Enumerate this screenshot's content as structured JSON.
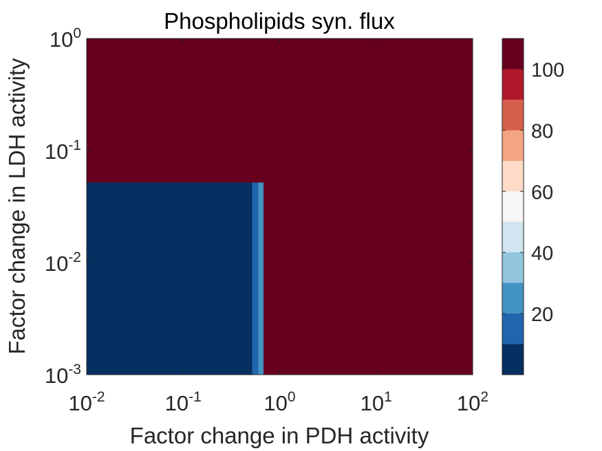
{
  "chart_data": {
    "type": "heatmap",
    "title": "Phospholipids syn. flux",
    "xlabel": "Factor change in PDH activity",
    "ylabel": "Factor change in LDH activity",
    "x_scale": "log",
    "y_scale": "log",
    "xlim": [
      0.01,
      100
    ],
    "ylim": [
      0.001,
      1
    ],
    "x_ticks": [
      {
        "base": "10",
        "exp": "-2",
        "value": 0.01
      },
      {
        "base": "10",
        "exp": "-1",
        "value": 0.1
      },
      {
        "base": "10",
        "exp": "0",
        "value": 1
      },
      {
        "base": "10",
        "exp": "1",
        "value": 10
      },
      {
        "base": "10",
        "exp": "2",
        "value": 100
      }
    ],
    "y_ticks": [
      {
        "base": "10",
        "exp": "-3",
        "value": 0.001
      },
      {
        "base": "10",
        "exp": "-2",
        "value": 0.01
      },
      {
        "base": "10",
        "exp": "-1",
        "value": 0.1
      },
      {
        "base": "10",
        "exp": "0",
        "value": 1
      }
    ],
    "regions": [
      {
        "x": [
          0.01,
          100
        ],
        "y": [
          0.001,
          1
        ],
        "value": 105
      },
      {
        "x": [
          0.01,
          0.52
        ],
        "y": [
          0.001,
          0.052
        ],
        "value": 3
      },
      {
        "x": [
          0.52,
          0.6
        ],
        "y": [
          0.001,
          0.052
        ],
        "value": 15
      },
      {
        "x": [
          0.6,
          0.68
        ],
        "y": [
          0.001,
          0.052
        ],
        "value": 25
      }
    ],
    "grid": false,
    "colorbar": {
      "min": 0,
      "max": 110,
      "ticks": [
        {
          "label": "20",
          "value": 20
        },
        {
          "label": "40",
          "value": 40
        },
        {
          "label": "60",
          "value": 60
        },
        {
          "label": "80",
          "value": 80
        },
        {
          "label": "100",
          "value": 100
        }
      ],
      "bands": [
        {
          "from": 0,
          "to": 10,
          "color": "#053061"
        },
        {
          "from": 10,
          "to": 20,
          "color": "#2166ac"
        },
        {
          "from": 20,
          "to": 30,
          "color": "#4393c3"
        },
        {
          "from": 30,
          "to": 40,
          "color": "#92c5de"
        },
        {
          "from": 40,
          "to": 50,
          "color": "#d1e5f0"
        },
        {
          "from": 50,
          "to": 60,
          "color": "#f7f7f7"
        },
        {
          "from": 60,
          "to": 70,
          "color": "#fddbc7"
        },
        {
          "from": 70,
          "to": 80,
          "color": "#f4a582"
        },
        {
          "from": 80,
          "to": 90,
          "color": "#d6604d"
        },
        {
          "from": 90,
          "to": 100,
          "color": "#b2182b"
        },
        {
          "from": 100,
          "to": 110,
          "color": "#67001f"
        }
      ]
    }
  }
}
